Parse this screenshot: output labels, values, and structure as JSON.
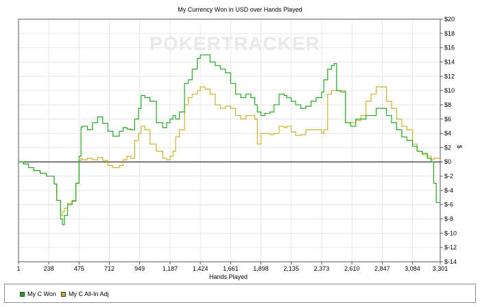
{
  "chart_data": {
    "type": "line",
    "title": "My Currency Won in USD over Hands Played",
    "xlabel": "Hands Played",
    "ylabel": "$",
    "xlim": [
      1,
      3301
    ],
    "ylim": [
      -14,
      20
    ],
    "x_ticks": [
      1,
      238,
      475,
      712,
      949,
      1187,
      1424,
      1661,
      1898,
      2135,
      2373,
      2610,
      2847,
      3084,
      3301
    ],
    "x_tick_labels": [
      "1",
      "238",
      "475",
      "712",
      "949",
      "1,187",
      "1,424",
      "1,661",
      "1,898",
      "2,135",
      "2,373",
      "2,610",
      "2,847",
      "3,084",
      "3,301"
    ],
    "y_ticks": [
      20,
      18,
      16,
      14,
      12,
      10,
      8,
      6,
      4,
      2,
      0,
      -2,
      -4,
      -6,
      -8,
      -10,
      -12,
      -14
    ],
    "y_tick_labels": [
      "$20",
      "$18",
      "$16",
      "$14",
      "$12",
      "$10",
      "$8",
      "$6",
      "$4",
      "$2",
      "$0",
      "$-2",
      "$-4",
      "$-6",
      "$-8",
      "$-10",
      "$-12",
      "$-14"
    ],
    "watermark": "POKERTRACKER",
    "grid": true,
    "legend_position": "bottom",
    "series": [
      {
        "name": "My C Won",
        "color": "#22a822",
        "x": [
          1,
          40,
          80,
          120,
          170,
          220,
          280,
          300,
          330,
          345,
          360,
          385,
          420,
          450,
          475,
          490,
          500,
          540,
          580,
          620,
          660,
          700,
          740,
          790,
          820,
          850,
          880,
          910,
          940,
          960,
          990,
          1030,
          1080,
          1130,
          1160,
          1187,
          1210,
          1230,
          1260,
          1300,
          1330,
          1360,
          1400,
          1424,
          1460,
          1500,
          1540,
          1580,
          1620,
          1661,
          1700,
          1740,
          1780,
          1820,
          1850,
          1870,
          1898,
          1930,
          1970,
          2000,
          2040,
          2080,
          2100,
          2135,
          2170,
          2210,
          2250,
          2290,
          2330,
          2373,
          2390,
          2420,
          2450,
          2470,
          2490,
          2520,
          2560,
          2600,
          2640,
          2680,
          2720,
          2760,
          2800,
          2847,
          2880,
          2920,
          2960,
          3000,
          3040,
          3084,
          3120,
          3160,
          3200,
          3230,
          3250,
          3270,
          3301
        ],
        "y": [
          0,
          -0.3,
          -0.8,
          -1.2,
          -1.6,
          -2.0,
          -3.1,
          -5.4,
          -8.0,
          -8.8,
          -7.5,
          -6.0,
          -5.5,
          -3.0,
          0.8,
          4.8,
          5.0,
          4.5,
          5.5,
          6.3,
          5.4,
          4.3,
          3.6,
          4.3,
          4.8,
          4.6,
          4.5,
          6.0,
          7.5,
          9.3,
          9.0,
          8.5,
          5.5,
          4.8,
          5.5,
          6.0,
          6.5,
          6.0,
          7.0,
          11.0,
          11.5,
          13.0,
          14.5,
          15.0,
          15.0,
          14.0,
          13.5,
          13.0,
          12.5,
          11.0,
          9.5,
          9.0,
          9.5,
          9.0,
          8.0,
          7.0,
          6.5,
          6.8,
          7.0,
          8.0,
          9.5,
          9.3,
          9.0,
          8.5,
          8.0,
          7.5,
          7.8,
          8.5,
          9.0,
          9.8,
          11.5,
          13.0,
          13.5,
          13.8,
          10.0,
          9.8,
          5.5,
          5.0,
          6.0,
          6.0,
          6.5,
          6.5,
          7.5,
          7.5,
          6.5,
          5.5,
          4.5,
          3.5,
          3.0,
          2.2,
          1.5,
          1.2,
          0.5,
          0.0,
          -3.0,
          -5.7,
          -5.8
        ]
      },
      {
        "name": "My C All-In Adj",
        "color": "#c8b42a",
        "x": [
          1,
          40,
          80,
          120,
          170,
          220,
          280,
          300,
          330,
          345,
          360,
          385,
          420,
          450,
          475,
          490,
          500,
          540,
          580,
          620,
          660,
          700,
          740,
          790,
          820,
          850,
          880,
          910,
          940,
          960,
          990,
          1030,
          1080,
          1130,
          1160,
          1187,
          1210,
          1230,
          1260,
          1300,
          1330,
          1360,
          1400,
          1424,
          1460,
          1500,
          1540,
          1580,
          1620,
          1661,
          1700,
          1740,
          1780,
          1820,
          1850,
          1870,
          1898,
          1930,
          1970,
          2000,
          2040,
          2080,
          2100,
          2135,
          2170,
          2210,
          2250,
          2290,
          2330,
          2373,
          2390,
          2420,
          2450,
          2470,
          2490,
          2520,
          2560,
          2600,
          2640,
          2680,
          2720,
          2760,
          2800,
          2847,
          2880,
          2920,
          2960,
          3000,
          3040,
          3084,
          3120,
          3160,
          3200,
          3230,
          3250,
          3270,
          3301
        ],
        "y": [
          0,
          -0.3,
          -0.8,
          -1.2,
          -1.6,
          -2.0,
          -3.1,
          -5.4,
          -7.5,
          -7.0,
          -6.5,
          -5.8,
          -5.4,
          -3.0,
          0.2,
          0.5,
          0.3,
          0.5,
          0.3,
          0.6,
          0.2,
          -0.5,
          -0.8,
          -0.5,
          0.3,
          0.8,
          0.5,
          3.0,
          4.0,
          5.0,
          4.5,
          2.5,
          1.5,
          0.5,
          0.3,
          0.8,
          1.5,
          3.5,
          4.5,
          8.0,
          9.0,
          9.5,
          10.0,
          10.5,
          10.2,
          9.5,
          8.0,
          7.5,
          7.8,
          7.5,
          6.5,
          6.0,
          6.5,
          6.5,
          6.0,
          2.5,
          4.0,
          4.0,
          3.8,
          4.0,
          5.0,
          4.8,
          5.0,
          4.2,
          3.7,
          3.8,
          4.5,
          4.5,
          4.5,
          4.0,
          4.5,
          9.5,
          10.0,
          10.0,
          10.0,
          10.0,
          5.5,
          5.5,
          5.8,
          6.5,
          8.5,
          9.5,
          10.5,
          10.5,
          8.5,
          7.5,
          6.0,
          5.0,
          4.5,
          2.5,
          1.5,
          1.0,
          0.8,
          0.3,
          0.5,
          0.5,
          0.5
        ]
      }
    ]
  }
}
